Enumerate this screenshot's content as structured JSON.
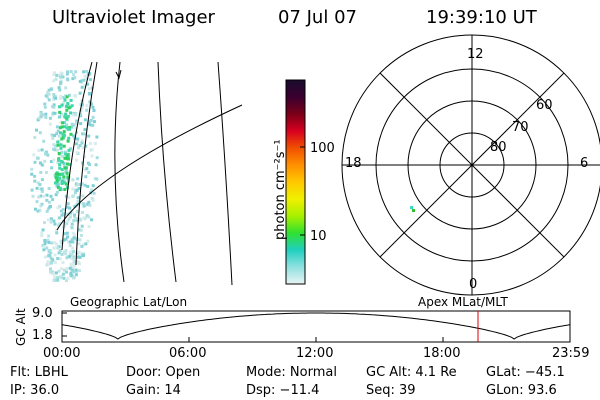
{
  "header": {
    "title": "Ultraviolet Imager",
    "date": "07 Jul 07",
    "time": "19:39:10 UT"
  },
  "geographic_panel": {
    "label": "Geographic Lat/Lon"
  },
  "colorbar": {
    "unit_label": "photon cm⁻²s⁻¹",
    "ticks": [
      "100",
      "10"
    ],
    "scale": "log",
    "colors": [
      "#1a0c2e",
      "#3a0030",
      "#7a0018",
      "#d80020",
      "#f05000",
      "#ff9000",
      "#ffc800",
      "#f0f000",
      "#a8f000",
      "#30e030",
      "#20d0c0",
      "#90e0e0",
      "#e8f4f4"
    ]
  },
  "polar_panel": {
    "label": "Apex MLat/MLT",
    "mlt_labels": {
      "top": "12",
      "bottom": "0",
      "left": "18",
      "right": "6"
    },
    "lat_labels": [
      "60",
      "70",
      "80"
    ]
  },
  "timeline": {
    "y_label": "GC Alt",
    "y_ticks": [
      "9.0",
      "1.8"
    ],
    "x_ticks": [
      "00:00",
      "06:00",
      "12:00",
      "18:00",
      "23:59"
    ],
    "current_time": "19:39:10"
  },
  "footer": {
    "row1": [
      "Flt: LBHL",
      "Door: Open",
      "Mode: Normal",
      "GC Alt: 4.1 Re",
      "GLat: −45.1"
    ],
    "row2": [
      "IP: 36.0",
      "Gain: 14",
      "Dsp:  −11.4",
      "Seq: 39",
      "GLon:  93.6"
    ]
  }
}
